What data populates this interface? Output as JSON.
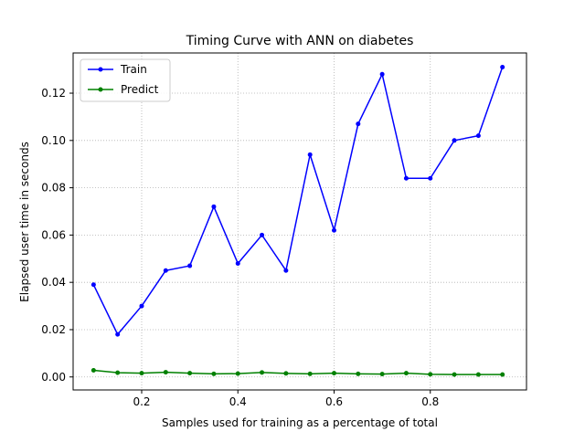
{
  "chart_data": {
    "type": "line",
    "title": "Timing Curve with ANN on diabetes",
    "xlabel": "Samples used for training as a percentage of total",
    "ylabel": "Elapsed user time in seconds",
    "x": [
      0.1,
      0.15,
      0.2,
      0.25,
      0.3,
      0.35,
      0.4,
      0.45,
      0.5,
      0.55,
      0.6,
      0.65,
      0.7,
      0.75,
      0.8,
      0.85,
      0.9,
      0.95
    ],
    "xlim": [
      0.0575,
      1.0
    ],
    "ylim": [
      -0.0055,
      0.137
    ],
    "x_ticks": [
      0.2,
      0.4,
      0.6,
      0.8
    ],
    "x_tick_labels": [
      "0.2",
      "0.4",
      "0.6",
      "0.8"
    ],
    "y_ticks": [
      0.0,
      0.02,
      0.04,
      0.06,
      0.08,
      0.1,
      0.12
    ],
    "y_tick_labels": [
      "0.00",
      "0.02",
      "0.04",
      "0.06",
      "0.08",
      "0.10",
      "0.12"
    ],
    "grid": true,
    "legend_position": "top-left",
    "series": [
      {
        "name": "Train",
        "color": "#0000ff",
        "values": [
          0.039,
          0.018,
          0.03,
          0.045,
          0.047,
          0.072,
          0.048,
          0.06,
          0.045,
          0.094,
          0.062,
          0.107,
          0.128,
          0.084,
          0.084,
          0.1,
          0.102,
          0.131
        ]
      },
      {
        "name": "Predict",
        "color": "#008000",
        "values": [
          0.0028,
          0.0018,
          0.0016,
          0.002,
          0.0016,
          0.0013,
          0.0014,
          0.0019,
          0.0015,
          0.0013,
          0.0016,
          0.0013,
          0.0012,
          0.0016,
          0.0011,
          0.001,
          0.001,
          0.001
        ]
      }
    ]
  }
}
